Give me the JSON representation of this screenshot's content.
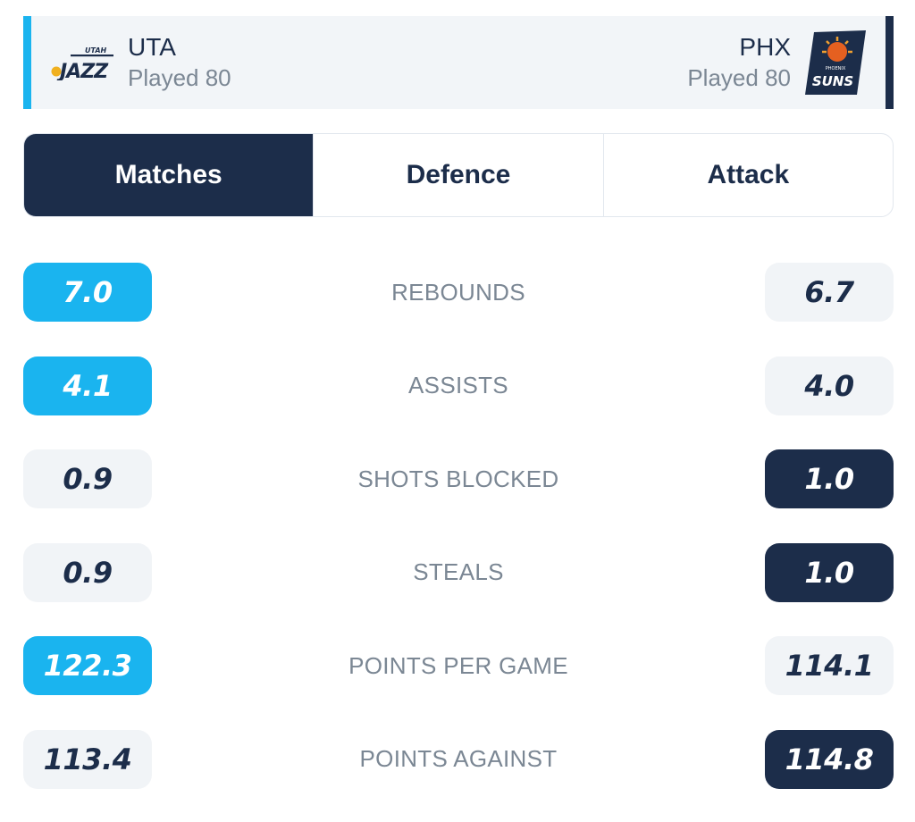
{
  "header": {
    "home": {
      "abbr": "UTA",
      "played": "Played 80",
      "logo_text_top": "UTAH",
      "logo_text_main": "JAZZ",
      "logo_icon": "jazz-logo-icon"
    },
    "away": {
      "abbr": "PHX",
      "played": "Played 80",
      "logo_text_top": "PHOENIX",
      "logo_text_main": "SUNS",
      "logo_icon": "suns-logo-icon"
    }
  },
  "tabs": [
    {
      "label": "Matches",
      "active": true
    },
    {
      "label": "Defence",
      "active": false
    },
    {
      "label": "Attack",
      "active": false
    }
  ],
  "stats": [
    {
      "label": "REBOUNDS",
      "home": "7.0",
      "away": "6.7",
      "leader": "home"
    },
    {
      "label": "ASSISTS",
      "home": "4.1",
      "away": "4.0",
      "leader": "home"
    },
    {
      "label": "SHOTS BLOCKED",
      "home": "0.9",
      "away": "1.0",
      "leader": "away"
    },
    {
      "label": "STEALS",
      "home": "0.9",
      "away": "1.0",
      "leader": "away"
    },
    {
      "label": "POINTS PER GAME",
      "home": "122.3",
      "away": "114.1",
      "leader": "home"
    },
    {
      "label": "POINTS AGAINST",
      "home": "113.4",
      "away": "114.8",
      "leader": "away"
    }
  ],
  "colors": {
    "home_accent": "#1ab4ef",
    "away_accent": "#1c2d4a",
    "neutral_pill": "#f1f4f7",
    "label_gray": "#7b8794"
  }
}
